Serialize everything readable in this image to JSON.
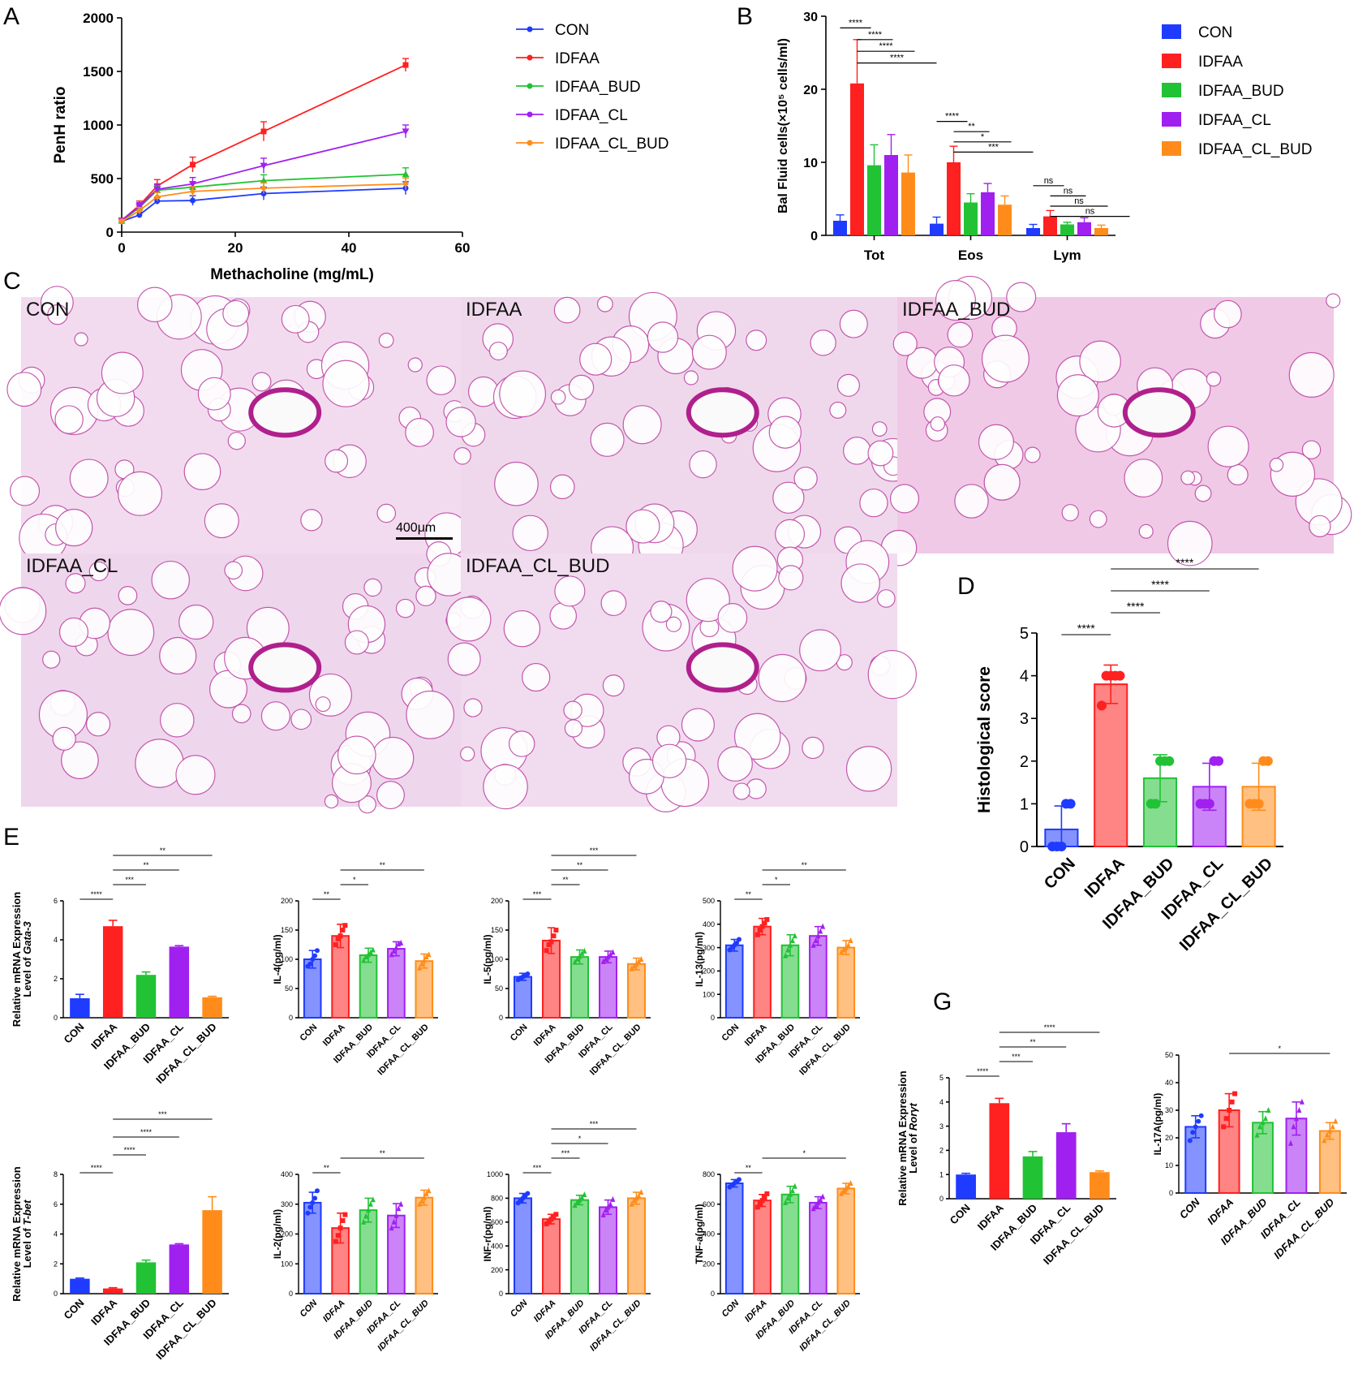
{
  "colors": {
    "CON": "#1f3bff",
    "IDFAA": "#ff2020",
    "IDFAA_BUD": "#22c235",
    "IDFAA_CL": "#a020f0",
    "IDFAA_CL_BUD": "#ff8c1a"
  },
  "panel_letters": {
    "A": "A",
    "B": "B",
    "C": "C",
    "D": "D",
    "E": "E",
    "G": "G"
  },
  "legend_groups": [
    "CON",
    "IDFAA",
    "IDFAA_BUD",
    "IDFAA_CL",
    "IDFAA_CL_BUD"
  ],
  "histology": {
    "panels": [
      {
        "label": "CON",
        "stain": "#f3dbef"
      },
      {
        "label": "IDFAA",
        "stain": "#efd8ec"
      },
      {
        "label": "IDFAA_BUD",
        "stain": "#f0c9e6"
      },
      {
        "label": "IDFAA_CL",
        "stain": "#eed6ec"
      },
      {
        "label": "IDFAA_CL_BUD",
        "stain": "#f1dbef"
      }
    ],
    "scale_bar_label": "400μm"
  },
  "chart_data": [
    {
      "id": "A",
      "type": "line",
      "xlabel": "Methacholine (mg/mL)",
      "ylabel": "PenH ratio",
      "xlim": [
        0,
        60
      ],
      "ylim": [
        0,
        2000
      ],
      "xticks": [
        "0",
        "20",
        "40",
        "60"
      ],
      "yticks": [
        "0",
        "500",
        "1000",
        "1500",
        "2000"
      ],
      "legend": "right",
      "x": [
        0,
        3.125,
        6.25,
        12.5,
        25,
        50
      ],
      "series": [
        {
          "name": "CON",
          "values": [
            100,
            160,
            290,
            295,
            360,
            410
          ],
          "err": [
            20,
            25,
            30,
            45,
            60,
            60
          ]
        },
        {
          "name": "IDFAA",
          "values": [
            110,
            250,
            430,
            630,
            940,
            1560
          ],
          "err": [
            20,
            40,
            60,
            70,
            90,
            60
          ]
        },
        {
          "name": "IDFAA_BUD",
          "values": [
            105,
            230,
            390,
            420,
            480,
            540
          ],
          "err": [
            20,
            30,
            40,
            50,
            55,
            60
          ]
        },
        {
          "name": "IDFAA_CL",
          "values": [
            110,
            240,
            400,
            450,
            620,
            940
          ],
          "err": [
            20,
            35,
            45,
            60,
            70,
            60
          ]
        },
        {
          "name": "IDFAA_CL_BUD",
          "values": [
            100,
            200,
            330,
            380,
            410,
            450
          ],
          "err": [
            20,
            30,
            40,
            45,
            50,
            55
          ]
        }
      ]
    },
    {
      "id": "B",
      "type": "bar",
      "ylabel": "Bal Fluid cells(×10⁵ cells/ml)",
      "ylim": [
        0,
        30
      ],
      "yticks": [
        "0",
        "10",
        "20",
        "30"
      ],
      "categories": [
        "Tot",
        "Eos",
        "Lym"
      ],
      "legend": "right",
      "series": [
        {
          "name": "CON",
          "values": [
            2,
            1.6,
            1
          ],
          "err": [
            0.8,
            0.9,
            0.5
          ]
        },
        {
          "name": "IDFAA",
          "values": [
            20.8,
            10,
            2.6
          ],
          "err": [
            6,
            2.2,
            0.8
          ]
        },
        {
          "name": "IDFAA_BUD",
          "values": [
            9.6,
            4.5,
            1.5
          ],
          "err": [
            2.8,
            1.2,
            0.3
          ]
        },
        {
          "name": "IDFAA_CL",
          "values": [
            11,
            5.9,
            1.8
          ],
          "err": [
            2.8,
            1.2,
            0.6
          ]
        },
        {
          "name": "IDFAA_CL_BUD",
          "values": [
            8.6,
            4.2,
            1
          ],
          "err": [
            2.4,
            1.2,
            0.4
          ]
        }
      ],
      "significance": [
        {
          "g": 0,
          "a": 0,
          "b": 1,
          "label": "****",
          "lvl": 0
        },
        {
          "g": 0,
          "a": 1,
          "b": 2,
          "label": "****",
          "lvl": 1
        },
        {
          "g": 0,
          "a": 1,
          "b": 3,
          "label": "****",
          "lvl": 2
        },
        {
          "g": 0,
          "a": 1,
          "b": 4,
          "label": "****",
          "lvl": 3
        },
        {
          "g": 1,
          "a": 0,
          "b": 1,
          "label": "****",
          "lvl": 0
        },
        {
          "g": 1,
          "a": 1,
          "b": 2,
          "label": "**",
          "lvl": 1
        },
        {
          "g": 1,
          "a": 1,
          "b": 3,
          "label": "*",
          "lvl": 2
        },
        {
          "g": 1,
          "a": 1,
          "b": 4,
          "label": "***",
          "lvl": 3
        },
        {
          "g": 2,
          "a": 0,
          "b": 1,
          "label": "ns",
          "lvl": 0
        },
        {
          "g": 2,
          "a": 1,
          "b": 2,
          "label": "ns",
          "lvl": 1
        },
        {
          "g": 2,
          "a": 1,
          "b": 3,
          "label": "ns",
          "lvl": 2
        },
        {
          "g": 2,
          "a": 1,
          "b": 4,
          "label": "ns",
          "lvl": 3
        }
      ]
    },
    {
      "id": "D",
      "type": "bar",
      "ylabel": "Histological score",
      "ylim": [
        0,
        5
      ],
      "yticks": [
        "0",
        "1",
        "2",
        "3",
        "4",
        "5"
      ],
      "categories": [
        "CON",
        "IDFAA",
        "IDFAA_BUD",
        "IDFAA_CL",
        "IDFAA_CL_BUD"
      ],
      "values": [
        0.4,
        3.8,
        1.6,
        1.4,
        1.4
      ],
      "err": [
        0.55,
        0.45,
        0.55,
        0.55,
        0.55
      ],
      "points": [
        [
          0,
          0,
          0,
          1,
          1
        ],
        [
          3.3,
          4,
          4,
          4,
          4
        ],
        [
          1,
          1,
          2,
          2,
          2
        ],
        [
          1,
          1,
          1,
          2,
          2
        ],
        [
          1,
          1,
          1,
          2,
          2
        ]
      ],
      "significance": [
        {
          "a": 0,
          "b": 1,
          "label": "****"
        },
        {
          "a": 1,
          "b": 2,
          "label": "****"
        },
        {
          "a": 1,
          "b": 3,
          "label": "****"
        },
        {
          "a": 1,
          "b": 4,
          "label": "****"
        }
      ]
    },
    {
      "id": "E1",
      "type": "bar",
      "ylabel": [
        "Relative mRNA Expression",
        "Level of Gata-3"
      ],
      "ylim": [
        0,
        6
      ],
      "yticks": [
        "0",
        "2",
        "4",
        "6"
      ],
      "categories": [
        "CON",
        "IDFAA",
        "IDFAA_BUD",
        "IDFAA_CL",
        "IDFAA_CL_BUD"
      ],
      "values": [
        1,
        4.7,
        2.2,
        3.65,
        1.05
      ],
      "err": [
        0.2,
        0.3,
        0.15,
        0.05,
        0.05
      ],
      "solid": true,
      "significance": [
        {
          "a": 0,
          "b": 1,
          "label": "****"
        },
        {
          "a": 1,
          "b": 2,
          "label": "***"
        },
        {
          "a": 1,
          "b": 3,
          "label": "**"
        },
        {
          "a": 1,
          "b": 4,
          "label": "**"
        }
      ]
    },
    {
      "id": "E2",
      "type": "bar",
      "ylabel": "IL-4(pg/ml)",
      "ylim": [
        0,
        200
      ],
      "yticks": [
        "0",
        "50",
        "100",
        "150",
        "200"
      ],
      "categories": [
        "CON",
        "IDFAA",
        "IDFAA_BUD",
        "IDFAA_CL",
        "IDFAA_CL_BUD"
      ],
      "values": [
        100,
        140,
        107,
        118,
        97
      ],
      "err": [
        15,
        20,
        12,
        12,
        12
      ],
      "points": [
        [
          88,
          92,
          100,
          106,
          115
        ],
        [
          125,
          135,
          140,
          150,
          158
        ],
        [
          98,
          104,
          108,
          112,
          116
        ],
        [
          108,
          114,
          120,
          126,
          128
        ],
        [
          85,
          92,
          98,
          104,
          108
        ]
      ],
      "significance": [
        {
          "a": 0,
          "b": 1,
          "label": "**"
        },
        {
          "a": 1,
          "b": 2,
          "label": "*"
        },
        {
          "a": 1,
          "b": 4,
          "label": "**"
        }
      ]
    },
    {
      "id": "E3",
      "type": "bar",
      "ylabel": "IL-5(pg/ml)",
      "ylim": [
        0,
        200
      ],
      "yticks": [
        "0",
        "50",
        "100",
        "150",
        "200"
      ],
      "categories": [
        "CON",
        "IDFAA",
        "IDFAA_BUD",
        "IDFAA_CL",
        "IDFAA_CL_BUD"
      ],
      "values": [
        70,
        132,
        104,
        104,
        92
      ],
      "err": [
        6,
        22,
        12,
        10,
        10
      ],
      "points": [
        [
          65,
          68,
          70,
          72,
          75
        ],
        [
          115,
          125,
          130,
          140,
          150
        ],
        [
          95,
          100,
          105,
          110,
          114
        ],
        [
          96,
          100,
          104,
          108,
          112
        ],
        [
          84,
          88,
          92,
          96,
          100
        ]
      ],
      "significance": [
        {
          "a": 0,
          "b": 1,
          "label": "***"
        },
        {
          "a": 1,
          "b": 2,
          "label": "**"
        },
        {
          "a": 1,
          "b": 3,
          "label": "**"
        },
        {
          "a": 1,
          "b": 4,
          "label": "***"
        }
      ]
    },
    {
      "id": "E4",
      "type": "bar",
      "ylabel": "IL-13(pg/ml)",
      "ylim": [
        0,
        500
      ],
      "yticks": [
        "0",
        "100",
        "200",
        "300",
        "400",
        "500"
      ],
      "categories": [
        "CON",
        "IDFAA",
        "IDFAA_BUD",
        "IDFAA_CL",
        "IDFAA_CL_BUD"
      ],
      "values": [
        310,
        390,
        310,
        350,
        300
      ],
      "err": [
        25,
        35,
        45,
        40,
        30
      ],
      "points": [
        [
          290,
          300,
          310,
          320,
          335
        ],
        [
          355,
          375,
          390,
          405,
          420
        ],
        [
          265,
          290,
          310,
          330,
          350
        ],
        [
          310,
          330,
          350,
          370,
          390
        ],
        [
          280,
          290,
          300,
          310,
          330
        ]
      ],
      "significance": [
        {
          "a": 0,
          "b": 1,
          "label": "**"
        },
        {
          "a": 1,
          "b": 2,
          "label": "*"
        },
        {
          "a": 1,
          "b": 4,
          "label": "**"
        }
      ]
    },
    {
      "id": "E5",
      "type": "bar",
      "ylabel": [
        "Relative mRNA Expression",
        "Level of T-bet"
      ],
      "ylim": [
        0,
        8
      ],
      "yticks": [
        "0",
        "2",
        "4",
        "6",
        "8"
      ],
      "categories": [
        "CON",
        "IDFAA",
        "IDFAA_BUD",
        "IDFAA_CL",
        "IDFAA_CL_BUD"
      ],
      "values": [
        1,
        0.35,
        2.1,
        3.3,
        5.6
      ],
      "err": [
        0.05,
        0.05,
        0.15,
        0.05,
        0.9
      ],
      "solid": true,
      "significance": [
        {
          "a": 0,
          "b": 1,
          "label": "****"
        },
        {
          "a": 1,
          "b": 2,
          "label": "****"
        },
        {
          "a": 1,
          "b": 3,
          "label": "****"
        },
        {
          "a": 1,
          "b": 4,
          "label": "***"
        }
      ]
    },
    {
      "id": "E6",
      "type": "bar",
      "ylabel": "IL-2(pg/ml)",
      "ylim": [
        0,
        400
      ],
      "yticks": [
        "0",
        "100",
        "200",
        "300",
        "400"
      ],
      "categories": [
        "CON",
        "IDFAA",
        "IDFAA_BUD",
        "IDFAA_CL",
        "IDFAA_CL_BUD"
      ],
      "values": [
        305,
        220,
        280,
        262,
        322
      ],
      "err": [
        35,
        50,
        40,
        40,
        25
      ],
      "points": [
        [
          270,
          290,
          305,
          320,
          345
        ],
        [
          175,
          195,
          220,
          245,
          265
        ],
        [
          240,
          260,
          280,
          300,
          315
        ],
        [
          220,
          240,
          262,
          285,
          300
        ],
        [
          300,
          310,
          322,
          335,
          345
        ]
      ],
      "significance": [
        {
          "a": 0,
          "b": 1,
          "label": "**"
        },
        {
          "a": 1,
          "b": 4,
          "label": "**"
        }
      ]
    },
    {
      "id": "E7",
      "type": "bar",
      "ylabel": "INF-r(pg/ml)",
      "ylim": [
        0,
        1000
      ],
      "yticks": [
        "0",
        "200",
        "400",
        "600",
        "800",
        "1000"
      ],
      "categories": [
        "CON",
        "IDFAA",
        "IDFAA_BUD",
        "IDFAA_CL",
        "IDFAA_CL_BUD"
      ],
      "values": [
        800,
        625,
        785,
        725,
        800
      ],
      "err": [
        40,
        40,
        40,
        60,
        50
      ],
      "points": [
        [
          760,
          780,
          800,
          820,
          840
        ],
        [
          585,
          605,
          625,
          645,
          665
        ],
        [
          740,
          765,
          785,
          805,
          830
        ],
        [
          660,
          700,
          725,
          750,
          790
        ],
        [
          750,
          780,
          800,
          820,
          850
        ]
      ],
      "significance": [
        {
          "a": 0,
          "b": 1,
          "label": "***"
        },
        {
          "a": 1,
          "b": 2,
          "label": "***"
        },
        {
          "a": 1,
          "b": 3,
          "label": "*"
        },
        {
          "a": 1,
          "b": 4,
          "label": "***"
        }
      ]
    },
    {
      "id": "E8",
      "type": "bar",
      "ylabel": "TNF-a(pg/ml)",
      "ylim": [
        0,
        800
      ],
      "yticks": [
        "0",
        "200",
        "400",
        "600",
        "800"
      ],
      "categories": [
        "CON",
        "IDFAA",
        "IDFAA_BUD",
        "IDFAA_CL",
        "IDFAA_CL_BUD"
      ],
      "values": [
        740,
        625,
        665,
        610,
        705
      ],
      "err": [
        25,
        40,
        55,
        40,
        35
      ],
      "points": [
        [
          715,
          730,
          740,
          750,
          765
        ],
        [
          580,
          605,
          625,
          645,
          670
        ],
        [
          610,
          640,
          665,
          690,
          720
        ],
        [
          570,
          590,
          610,
          630,
          650
        ],
        [
          670,
          690,
          705,
          720,
          740
        ]
      ],
      "significance": [
        {
          "a": 0,
          "b": 1,
          "label": "**"
        },
        {
          "a": 1,
          "b": 4,
          "label": "*"
        }
      ]
    },
    {
      "id": "G1",
      "type": "bar",
      "ylabel": [
        "Relative mRNA Expression",
        "Level of Rorγt"
      ],
      "ylim": [
        0,
        5
      ],
      "yticks": [
        "0",
        "1",
        "2",
        "3",
        "4",
        "5"
      ],
      "categories": [
        "CON",
        "IDFAA",
        "IDFAA_BUD",
        "IDFAA_CL",
        "IDFAA_CL_BUD"
      ],
      "values": [
        1,
        3.95,
        1.75,
        2.75,
        1.1
      ],
      "err": [
        0.05,
        0.2,
        0.2,
        0.35,
        0.05
      ],
      "solid": true,
      "significance": [
        {
          "a": 0,
          "b": 1,
          "label": "****"
        },
        {
          "a": 1,
          "b": 2,
          "label": "***"
        },
        {
          "a": 1,
          "b": 3,
          "label": "**"
        },
        {
          "a": 1,
          "b": 4,
          "label": "****"
        }
      ]
    },
    {
      "id": "G2",
      "type": "bar",
      "ylabel": "IL-17A(pg/ml)",
      "ylim": [
        0,
        50
      ],
      "yticks": [
        "0",
        "10",
        "20",
        "30",
        "40",
        "50"
      ],
      "categories": [
        "CON",
        "IDFAA",
        "IDFAA_BUD",
        "IDFAA_CL",
        "IDFAA_CL_BUD"
      ],
      "values": [
        24,
        30,
        25.5,
        27,
        22.5
      ],
      "err": [
        4,
        6,
        4,
        6,
        3
      ],
      "points": [
        [
          19,
          22,
          24,
          26,
          28
        ],
        [
          24,
          27,
          30,
          33,
          36
        ],
        [
          21,
          24,
          25.5,
          27,
          30
        ],
        [
          18,
          24,
          27,
          30,
          33
        ],
        [
          19,
          21,
          22.5,
          24,
          26
        ]
      ],
      "significance": [
        {
          "a": 1,
          "b": 4,
          "label": "*"
        }
      ]
    }
  ]
}
